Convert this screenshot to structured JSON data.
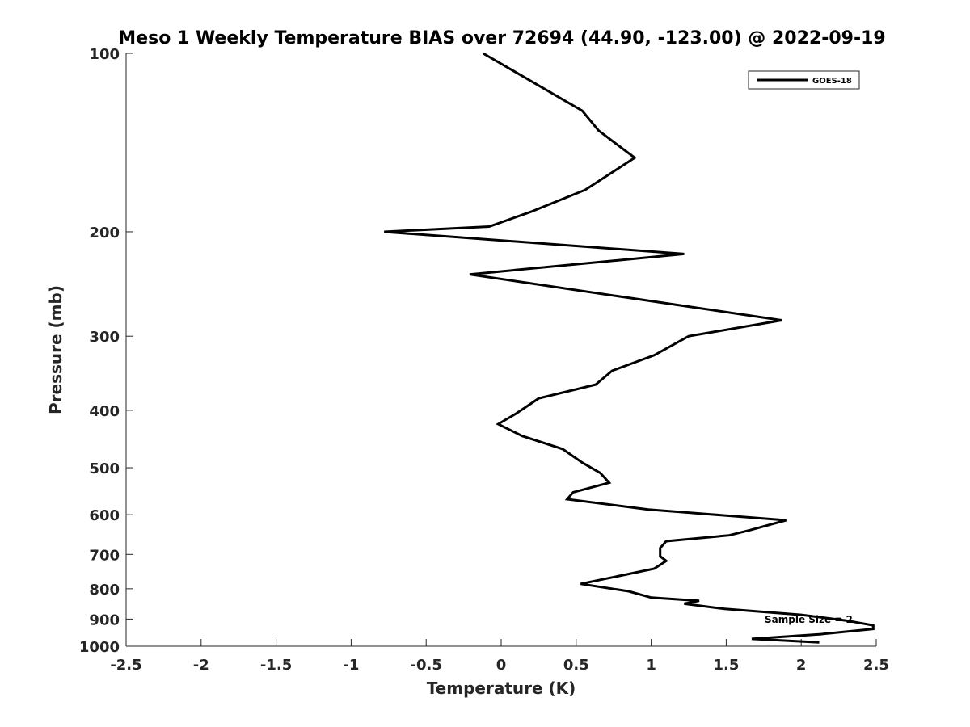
{
  "chart_data": {
    "type": "line",
    "title": "Meso 1 Weekly Temperature BIAS over 72694 (44.90, -123.00) @ 2022-09-19",
    "xlabel": "Temperature (K)",
    "ylabel": "Pressure (mb)",
    "xlim": [
      -2.5,
      2.5
    ],
    "ylim": [
      100,
      1000
    ],
    "y_scale": "log",
    "y_reversed": true,
    "x_ticks": [
      "-2.5",
      "-2",
      "-1.5",
      "-1",
      "-0.5",
      "0",
      "0.5",
      "1",
      "1.5",
      "2",
      "2.5"
    ],
    "y_ticks": [
      100,
      200,
      300,
      400,
      500,
      600,
      700,
      800,
      900,
      1000
    ],
    "grid": false,
    "legend_position": "top-right",
    "annotation": "Sample Size = 2",
    "series": [
      {
        "name": "GOES-18",
        "color": "#000000",
        "points": [
          [
            -0.12,
            100
          ],
          [
            0.54,
            125
          ],
          [
            0.65,
            135
          ],
          [
            0.89,
            150
          ],
          [
            0.56,
            170
          ],
          [
            0.2,
            185
          ],
          [
            -0.08,
            196
          ],
          [
            -0.78,
            200
          ],
          [
            1.22,
            218
          ],
          [
            -0.21,
            236
          ],
          [
            1.87,
            282
          ],
          [
            1.25,
            300
          ],
          [
            1.02,
            323
          ],
          [
            0.74,
            343
          ],
          [
            0.63,
            362
          ],
          [
            0.25,
            382
          ],
          [
            0.1,
            405
          ],
          [
            -0.02,
            422
          ],
          [
            0.14,
            442
          ],
          [
            0.41,
            465
          ],
          [
            0.54,
            490
          ],
          [
            0.66,
            510
          ],
          [
            0.72,
            530
          ],
          [
            0.48,
            550
          ],
          [
            0.44,
            565
          ],
          [
            0.98,
            588
          ],
          [
            1.9,
            613
          ],
          [
            1.66,
            637
          ],
          [
            1.52,
            650
          ],
          [
            1.1,
            665
          ],
          [
            1.06,
            683
          ],
          [
            1.06,
            705
          ],
          [
            1.1,
            718
          ],
          [
            1.02,
            740
          ],
          [
            0.8,
            760
          ],
          [
            0.53,
            785
          ],
          [
            0.85,
            808
          ],
          [
            1.0,
            828
          ],
          [
            1.32,
            838
          ],
          [
            1.22,
            848
          ],
          [
            1.49,
            865
          ],
          [
            2.0,
            885
          ],
          [
            2.3,
            905
          ],
          [
            2.48,
            922
          ],
          [
            2.48,
            935
          ],
          [
            2.12,
            955
          ],
          [
            1.67,
            972
          ],
          [
            2.12,
            985
          ]
        ]
      }
    ]
  }
}
